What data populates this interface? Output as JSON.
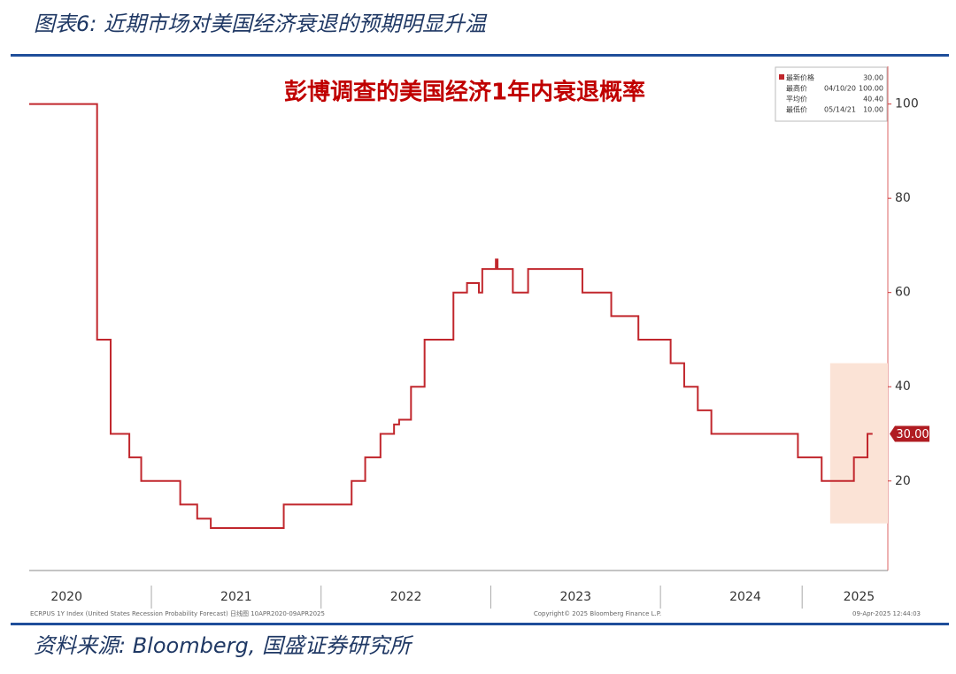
{
  "header": {
    "title": "图表6: 近期市场对美国经济衰退的预期明显升温"
  },
  "chart_data": {
    "type": "line",
    "title": "彭博调查的美国经济1年内衰退概率",
    "x": [
      2020.28,
      2020.68,
      2020.68,
      2020.76,
      2020.76,
      2020.87,
      2020.87,
      2020.94,
      2020.94,
      2021.17,
      2021.17,
      2021.27,
      2021.27,
      2021.35,
      2021.35,
      2021.78,
      2021.78,
      2022.18,
      2022.18,
      2022.26,
      2022.26,
      2022.35,
      2022.35,
      2022.43,
      2022.43,
      2022.46,
      2022.46,
      2022.53,
      2022.53,
      2022.61,
      2022.61,
      2022.78,
      2022.78,
      2022.86,
      2022.86,
      2022.93,
      2022.93,
      2022.95,
      2022.95,
      2023.03,
      2023.03,
      2023.04,
      2023.04,
      2023.13,
      2023.13,
      2023.22,
      2023.22,
      2023.54,
      2023.54,
      2023.71,
      2023.71,
      2023.87,
      2023.87,
      2024.06,
      2024.06,
      2024.14,
      2024.14,
      2024.22,
      2024.22,
      2024.3,
      2024.3,
      2024.81,
      2024.81,
      2024.95,
      2024.95,
      2025.14,
      2025.14,
      2025.22,
      2025.22,
      2025.25
    ],
    "series": [
      {
        "name": "ECRPUS 1Y Index",
        "color": "#c1272d",
        "values": [
          100,
          100,
          50,
          50,
          30,
          30,
          25,
          25,
          20,
          20,
          15,
          15,
          12,
          12,
          10,
          10,
          15,
          15,
          20,
          20,
          25,
          25,
          30,
          30,
          32,
          32,
          33,
          33,
          40,
          40,
          50,
          50,
          60,
          60,
          62,
          62,
          60,
          60,
          65,
          65,
          67,
          67,
          65,
          65,
          60,
          60,
          65,
          65,
          60,
          60,
          55,
          55,
          50,
          50,
          45,
          45,
          40,
          40,
          35,
          35,
          30,
          30,
          25,
          25,
          20,
          20,
          25,
          25,
          30,
          30
        ]
      }
    ],
    "xlim": [
      2020.28,
      2025.34
    ],
    "xticks": [
      {
        "value": 2020.5,
        "label": "2020"
      },
      {
        "value": 2021.5,
        "label": "2021"
      },
      {
        "value": 2022.5,
        "label": "2022"
      },
      {
        "value": 2023.5,
        "label": "2023"
      },
      {
        "value": 2024.5,
        "label": "2024"
      },
      {
        "value": 2025.17,
        "label": "2025"
      }
    ],
    "ylim": [
      1,
      108
    ],
    "yticks": [
      20,
      40,
      60,
      80,
      100
    ],
    "highlight_region": {
      "x": [
        2025.0,
        2025.34
      ],
      "y": [
        11,
        45
      ],
      "color": "#fbe3d6"
    },
    "last_value_label": {
      "value": 30,
      "label": "30.00"
    },
    "legend_stats": [
      {
        "label": "最新价格",
        "value": "30.00"
      },
      {
        "label": "最高价",
        "date": "04/10/20",
        "value": "100.00"
      },
      {
        "label": "平均价",
        "value": "40.40"
      },
      {
        "label": "最低价",
        "date": "05/14/21",
        "value": "10.00"
      }
    ],
    "footnotes": [
      "ECRPUS 1Y Index (United States Recession Probability Forecast) 日线图 10APR2020-09APR2025",
      "Copyright© 2025 Bloomberg Finance L.P.",
      "09-Apr-2025 12:44:03"
    ]
  },
  "source": "资料来源: Bloomberg, 国盛证券研究所"
}
